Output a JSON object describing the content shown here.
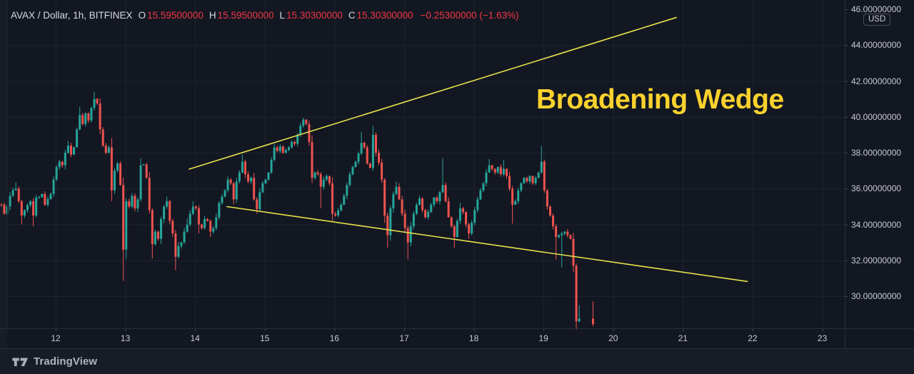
{
  "header": {
    "symbol": "AVAX / Dollar, 1h, BITFINEX",
    "ohlc": [
      {
        "label": "O",
        "value": "15.59500000"
      },
      {
        "label": "H",
        "value": "15.59500000"
      },
      {
        "label": "L",
        "value": "15.30300000"
      },
      {
        "label": "C",
        "value": "15.30300000"
      }
    ],
    "change": "−0.25300000 (−1.63%)"
  },
  "annotation": {
    "text": "Broadening Wedge"
  },
  "price_axis": {
    "currency": "USD"
  },
  "watermark": {
    "brand": "TradingView"
  },
  "colors": {
    "background": "#131722",
    "panel": "#181c27",
    "grid": "#1e2330",
    "border": "#2a2e39",
    "tick": "#434a57",
    "axis_text": "#c7cad1",
    "candle_up": "#26a69a",
    "candle_down": "#ef5350",
    "trendline": "#e6e24b",
    "annotation": "#fad22d"
  },
  "chart_data": {
    "type": "candlestick",
    "title": "AVAX / Dollar, 1h, BITFINEX",
    "exchange": "BITFINEX",
    "interval": "1h",
    "x_unit": "day of month (December)",
    "x_ticks": [
      12,
      13,
      14,
      15,
      16,
      17,
      18,
      19,
      20,
      21,
      22,
      23
    ],
    "y_ticks": [
      46,
      44,
      42,
      40,
      38,
      36,
      34,
      32,
      30
    ],
    "y_format_decimals": 8,
    "xlim": [
      11.2,
      23.35
    ],
    "ylim": [
      28.0,
      46.3
    ],
    "grid": true,
    "gaps": [
      [
        19.52,
        19.7
      ]
    ],
    "trendlines": [
      {
        "name": "wedge-upper",
        "x1": 13.91,
        "p1": 37.08,
        "x2": 20.91,
        "p2": 45.55
      },
      {
        "name": "wedge-lower",
        "x1": 14.45,
        "p1": 35.0,
        "x2": 21.93,
        "p2": 30.82
      }
    ],
    "pivots": [
      [
        11.22,
        35.1
      ],
      [
        11.28,
        34.6
      ],
      [
        11.34,
        35.6
      ],
      [
        11.41,
        36.0,
        0,
        36.35
      ],
      [
        11.47,
        35.3
      ],
      [
        11.52,
        34.5,
        34.0,
        0
      ],
      [
        11.57,
        34.8
      ],
      [
        11.62,
        35.3
      ],
      [
        11.66,
        34.5,
        33.9,
        0
      ],
      [
        11.73,
        35.5
      ],
      [
        11.8,
        35.7
      ],
      [
        11.85,
        35.1
      ],
      [
        11.92,
        35.7
      ],
      [
        11.98,
        36.5
      ],
      [
        12.02,
        37.2
      ],
      [
        12.06,
        37.5
      ],
      [
        12.1,
        37.3
      ],
      [
        12.15,
        38.0
      ],
      [
        12.19,
        38.4,
        0,
        38.65
      ],
      [
        12.24,
        37.9
      ],
      [
        12.27,
        38.3
      ],
      [
        12.31,
        39.3
      ],
      [
        12.35,
        40.1,
        0,
        40.55
      ],
      [
        12.39,
        39.6
      ],
      [
        12.43,
        40.2
      ],
      [
        12.47,
        39.8
      ],
      [
        12.51,
        40.5
      ],
      [
        12.56,
        41.0,
        0,
        41.4
      ],
      [
        12.6,
        40.75
      ],
      [
        12.63,
        39.3
      ],
      [
        12.69,
        38.4
      ],
      [
        12.73,
        38.0
      ],
      [
        12.76,
        38.3
      ],
      [
        12.79,
        37.4
      ],
      [
        12.82,
        35.9,
        35.3,
        0
      ],
      [
        12.86,
        37.0
      ],
      [
        12.89,
        37.4
      ],
      [
        12.92,
        36.2
      ],
      [
        12.95,
        33.9
      ],
      [
        12.98,
        32.6,
        30.85,
        0
      ],
      [
        13.01,
        35.3
      ],
      [
        13.05,
        35.0
      ],
      [
        13.1,
        35.6
      ],
      [
        13.14,
        34.9
      ],
      [
        13.18,
        35.4
      ],
      [
        13.22,
        37.3,
        0,
        37.6
      ],
      [
        13.26,
        37.35
      ],
      [
        13.31,
        36.6
      ],
      [
        13.35,
        34.8
      ],
      [
        13.39,
        32.9,
        32.1,
        0
      ],
      [
        13.43,
        33.6
      ],
      [
        13.47,
        33.2
      ],
      [
        13.52,
        34.3
      ],
      [
        13.56,
        35.0
      ],
      [
        13.6,
        35.3,
        0,
        35.55
      ],
      [
        13.64,
        34.2
      ],
      [
        13.68,
        33.5
      ],
      [
        13.71,
        32.2,
        31.45,
        0
      ],
      [
        13.75,
        32.8
      ],
      [
        13.79,
        33.0
      ],
      [
        13.83,
        33.6
      ],
      [
        13.88,
        34.0,
        0,
        34.35
      ],
      [
        13.93,
        34.6
      ],
      [
        13.97,
        35.0,
        0,
        35.3
      ],
      [
        14.01,
        34.9
      ],
      [
        14.05,
        34.0,
        33.5,
        0
      ],
      [
        14.09,
        33.8
      ],
      [
        14.13,
        34.3
      ],
      [
        14.17,
        34.2
      ],
      [
        14.21,
        33.6,
        33.3,
        0
      ],
      [
        14.25,
        33.8
      ],
      [
        14.3,
        34.4
      ],
      [
        14.36,
        35.2
      ],
      [
        14.41,
        35.9
      ],
      [
        14.46,
        36.5
      ],
      [
        14.5,
        36.3
      ],
      [
        14.54,
        35.4
      ],
      [
        14.58,
        36.4
      ],
      [
        14.62,
        36.9
      ],
      [
        14.66,
        37.5,
        0,
        37.9
      ],
      [
        14.71,
        36.8
      ],
      [
        14.76,
        36.4
      ],
      [
        14.81,
        36.6
      ],
      [
        14.85,
        35.4
      ],
      [
        14.89,
        34.85,
        34.6,
        0
      ],
      [
        14.93,
        35.8
      ],
      [
        14.97,
        36.3
      ],
      [
        15.01,
        36.5
      ],
      [
        15.05,
        36.9
      ],
      [
        15.1,
        37.6
      ],
      [
        15.15,
        38.3,
        0,
        38.5
      ],
      [
        15.19,
        38.1
      ],
      [
        15.24,
        38.35
      ],
      [
        15.28,
        38.0
      ],
      [
        15.33,
        38.3
      ],
      [
        15.37,
        38.6
      ],
      [
        15.41,
        38.5
      ],
      [
        15.45,
        38.9
      ],
      [
        15.49,
        39.0
      ],
      [
        15.53,
        39.5
      ],
      [
        15.57,
        39.85,
        0,
        39.95
      ],
      [
        15.61,
        39.6
      ],
      [
        15.65,
        38.6
      ],
      [
        15.68,
        36.6,
        36.3,
        0
      ],
      [
        15.72,
        36.9
      ],
      [
        15.76,
        36.8
      ],
      [
        15.79,
        36.1,
        34.9,
        0
      ],
      [
        15.83,
        36.5
      ],
      [
        15.87,
        36.7
      ],
      [
        15.91,
        36.3
      ],
      [
        15.95,
        35.3
      ],
      [
        15.99,
        34.6,
        34.2,
        0
      ],
      [
        16.03,
        34.5
      ],
      [
        16.08,
        35.1
      ],
      [
        16.12,
        35.6
      ],
      [
        16.16,
        36.2
      ],
      [
        16.2,
        36.3
      ],
      [
        16.24,
        36.8
      ],
      [
        16.28,
        37.2
      ],
      [
        16.32,
        37.5
      ],
      [
        16.37,
        38.55,
        0,
        39.15
      ],
      [
        16.41,
        38.3
      ],
      [
        16.45,
        37.4
      ],
      [
        16.5,
        37.15
      ],
      [
        16.54,
        39.0,
        0,
        39.5
      ],
      [
        16.58,
        38.0
      ],
      [
        16.62,
        37.45
      ],
      [
        16.66,
        36.5
      ],
      [
        16.7,
        35.3
      ],
      [
        16.73,
        34.5
      ],
      [
        16.76,
        33.4,
        32.7,
        0
      ],
      [
        16.8,
        34.9
      ],
      [
        16.84,
        35.7
      ],
      [
        16.88,
        36.1,
        0,
        36.4
      ],
      [
        16.92,
        35.4
      ],
      [
        16.97,
        34.6
      ],
      [
        17.01,
        33.8
      ],
      [
        17.05,
        33.0,
        32.05,
        0
      ],
      [
        17.09,
        33.9
      ],
      [
        17.13,
        34.6
      ],
      [
        17.17,
        35.1
      ],
      [
        17.21,
        35.45,
        0,
        35.6
      ],
      [
        17.25,
        34.8
      ],
      [
        17.29,
        34.4
      ],
      [
        17.33,
        34.7
      ],
      [
        17.38,
        35.1
      ],
      [
        17.42,
        35.5
      ],
      [
        17.46,
        35.3
      ],
      [
        17.5,
        35.8
      ],
      [
        17.56,
        36.2,
        0,
        37.7
      ],
      [
        17.6,
        35.3
      ],
      [
        17.64,
        34.4
      ],
      [
        17.68,
        33.9
      ],
      [
        17.72,
        33.3,
        32.7,
        0
      ],
      [
        17.76,
        34.2
      ],
      [
        17.81,
        34.9,
        0,
        35.2
      ],
      [
        17.85,
        34.7
      ],
      [
        17.89,
        34.0
      ],
      [
        17.93,
        33.5,
        33.2,
        0
      ],
      [
        17.97,
        34.1
      ],
      [
        18.01,
        34.8
      ],
      [
        18.05,
        35.4
      ],
      [
        18.09,
        35.9
      ],
      [
        18.13,
        36.3
      ],
      [
        18.17,
        36.9
      ],
      [
        18.22,
        37.3,
        0,
        37.65
      ],
      [
        18.26,
        37.1
      ],
      [
        18.3,
        36.9
      ],
      [
        18.34,
        37.2
      ],
      [
        18.38,
        36.8
      ],
      [
        18.42,
        37.1,
        0,
        37.6
      ],
      [
        18.46,
        36.7
      ],
      [
        18.5,
        36.0
      ],
      [
        18.54,
        35.1,
        34.05,
        0
      ],
      [
        18.58,
        35.3
      ],
      [
        18.62,
        35.9
      ],
      [
        18.67,
        36.3
      ],
      [
        18.71,
        36.6
      ],
      [
        18.75,
        36.4
      ],
      [
        18.79,
        36.7
      ],
      [
        18.83,
        36.3
      ],
      [
        18.87,
        36.6
      ],
      [
        18.91,
        36.9
      ],
      [
        18.95,
        37.3
      ],
      [
        18.99,
        37.5,
        0,
        38.37
      ],
      [
        19.02,
        35.9
      ],
      [
        19.06,
        35.0
      ],
      [
        19.11,
        34.5
      ],
      [
        19.14,
        33.9
      ],
      [
        19.17,
        33.3,
        32.05,
        0
      ],
      [
        19.21,
        33.4
      ],
      [
        19.25,
        33.6
      ],
      [
        19.28,
        33.5,
        31.6,
        0
      ],
      [
        19.32,
        33.6
      ],
      [
        19.36,
        33.4
      ],
      [
        19.39,
        33.2
      ],
      [
        19.42,
        31.7
      ],
      [
        19.46,
        28.6,
        28.3,
        0
      ],
      [
        19.5,
        28.75,
        0,
        29.5
      ],
      [
        19.71,
        28.45,
        0,
        29.7
      ]
    ]
  }
}
